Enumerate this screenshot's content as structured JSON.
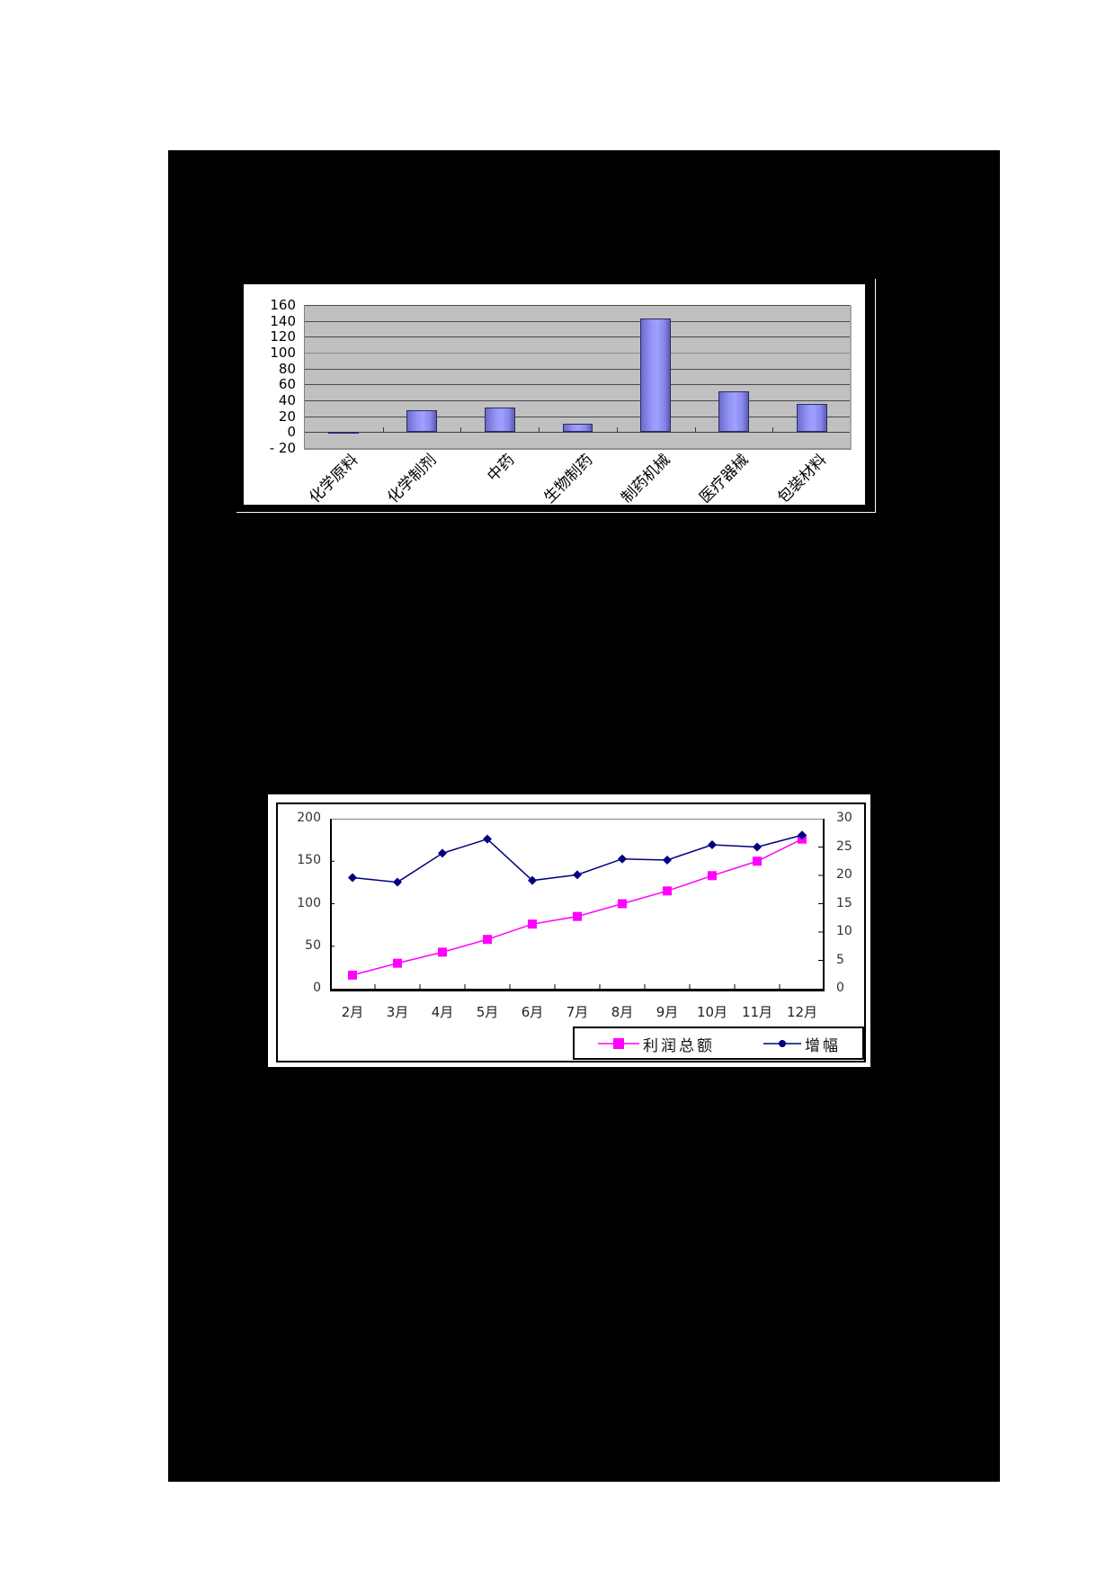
{
  "chart_data": [
    {
      "type": "bar",
      "title": "",
      "xlabel": "",
      "ylabel": "",
      "ylim": [
        -20,
        160
      ],
      "yticks": [
        160,
        140,
        120,
        100,
        80,
        60,
        40,
        20,
        0,
        -20
      ],
      "ytick_labels": [
        "160",
        "140",
        "120",
        "100",
        "80",
        "60",
        "40",
        "20",
        "0",
        "- 20"
      ],
      "grid": true,
      "legend": "none",
      "categories": [
        "化学原料",
        "化学制剂",
        "中药",
        "生物制药",
        "制药机械",
        "医疗器械",
        "包装材料"
      ],
      "values": [
        -1,
        27,
        31,
        11,
        143,
        51,
        36
      ],
      "colors": {
        "bar": "#9999ff",
        "plot_bg": "#c0c0c0",
        "grid": "#4a4a4a"
      }
    },
    {
      "type": "line",
      "title": "",
      "xlabel": "",
      "ylabel": "",
      "categories": [
        "2月",
        "3月",
        "4月",
        "5月",
        "6月",
        "7月",
        "8月",
        "9月",
        "10月",
        "11月",
        "12月"
      ],
      "left_axis": {
        "ylim": [
          0,
          200
        ],
        "ticks": [
          "200",
          "150",
          "100",
          "50",
          "0"
        ]
      },
      "right_axis": {
        "ylim": [
          0,
          30
        ],
        "ticks": [
          "30",
          "25",
          "20",
          "15",
          "10",
          "5",
          "0"
        ]
      },
      "grid": false,
      "legend_position": "bottom-right",
      "series": [
        {
          "name": "利润总额",
          "axis": "left",
          "marker": "square",
          "color": "#ff00ff",
          "values": [
            16,
            30,
            43,
            58,
            76,
            85,
            100,
            115,
            133,
            150,
            176
          ]
        },
        {
          "name": "增幅",
          "axis": "right",
          "marker": "diamond",
          "color": "#000080",
          "values": [
            19.6,
            18.8,
            23.9,
            26.4,
            19.1,
            20.1,
            22.9,
            22.7,
            25.4,
            25.0,
            27.1
          ]
        }
      ]
    }
  ],
  "legend": {
    "profit_label": "利润总额",
    "growth_label": "增幅"
  }
}
